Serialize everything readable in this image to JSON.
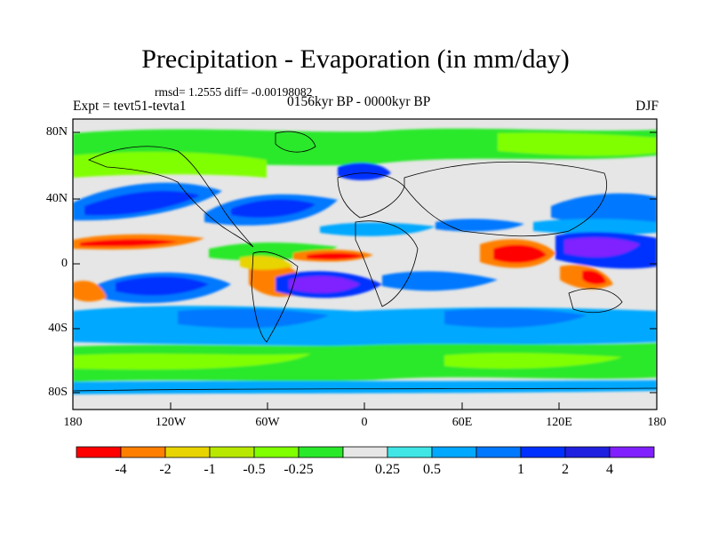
{
  "title": "Precipitation - Evaporation (in mm/day)",
  "stats": "rmsd= 1.2555  diff= -0.00198082",
  "experiment": "Expt = tevt51-tevta1",
  "period": "0156kyr BP - 0000kyr BP",
  "season": "DJF",
  "axes": {
    "y_ticks": [
      "80N",
      "40N",
      "0",
      "40S",
      "80S"
    ],
    "x_ticks": [
      "180",
      "120W",
      "60W",
      "0",
      "60E",
      "120E",
      "180"
    ]
  },
  "colorbar": {
    "colors": [
      "#ff0000",
      "#ff8000",
      "#e8d400",
      "#b8e800",
      "#80ff00",
      "#2ae82a",
      "#e6e6e6",
      "#40e6e6",
      "#00a8ff",
      "#0078ff",
      "#0030ff",
      "#2020e0",
      "#8020ff"
    ],
    "labels": [
      "-4",
      "-2",
      "-1",
      "-0.5",
      "-0.25",
      "0.25",
      "0.5",
      "1",
      "2",
      "4"
    ]
  }
}
